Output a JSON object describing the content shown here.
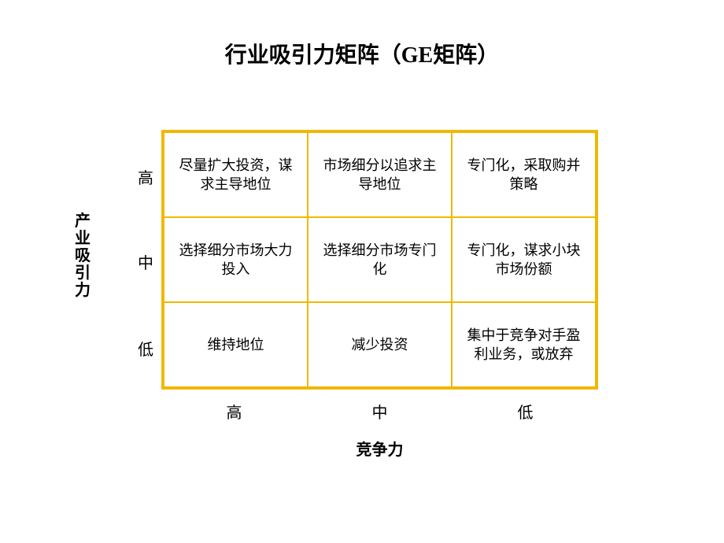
{
  "title": "行业吸引力矩阵（GE矩阵）",
  "matrix": {
    "type": "table",
    "border_color": "#f0b800",
    "border_width_outer": 3,
    "border_width_inner": 1.5,
    "background_color": "#ffffff",
    "text_color": "#000000",
    "cell_fontsize": 18,
    "rows": 3,
    "cols": 3,
    "cells": [
      "尽量扩大投资，谋求主导地位",
      "市场细分以追求主导地位",
      "专门化，采取购并策略",
      "选择细分市场大力投入",
      "选择细分市场专门化",
      "专门化，谋求小块市场份额",
      "维持地位",
      "减少投资",
      "集中于竞争对手盈利业务，或放弃"
    ]
  },
  "y_axis": {
    "title": "产业吸引力",
    "labels": {
      "high": "高",
      "mid": "中",
      "low": "低"
    },
    "fontsize": 20
  },
  "x_axis": {
    "title": "竞争力",
    "labels": {
      "high": "高",
      "mid": "中",
      "low": "低"
    },
    "fontsize": 20
  },
  "title_fontsize": 28
}
